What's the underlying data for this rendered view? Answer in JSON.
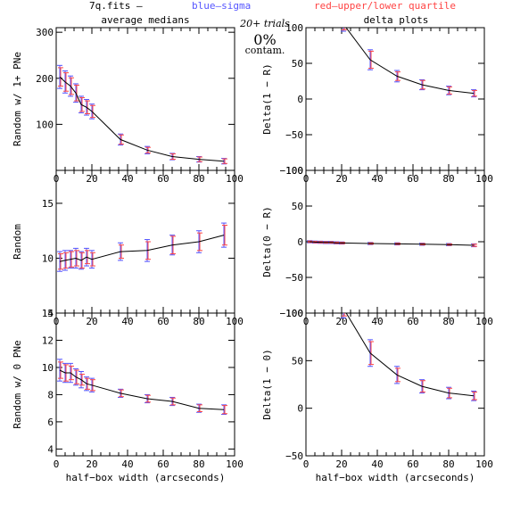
{
  "header": {
    "file": "7q.fits  —",
    "blue": "blue—sigma",
    "red": "red—upper/lower quartile",
    "left_title": "average medians",
    "right_title": "delta plots",
    "trials": "20+ trials",
    "contam_pct": "0%",
    "contam_word": "contam."
  },
  "colors": {
    "line": "#000000",
    "sigma": "#5555ff",
    "quartile": "#ff4444"
  },
  "chart_data": [
    {
      "id": "p1",
      "type": "line",
      "ylabel": "Random w/ 1+ PNe",
      "xlabel": "",
      "xlim": [
        0,
        100
      ],
      "ylim": [
        0,
        310
      ],
      "xticks": [
        "0",
        "20",
        "40",
        "60",
        "80",
        "100"
      ],
      "yticks": [
        "100",
        "200",
        "300"
      ],
      "x": [
        2,
        5,
        8,
        11,
        14,
        17,
        20,
        36,
        51,
        65,
        80,
        94
      ],
      "y": [
        203,
        192,
        183,
        168,
        143,
        137,
        128,
        67,
        44,
        30,
        24,
        20
      ],
      "sigma": [
        25,
        24,
        22,
        20,
        18,
        17,
        16,
        12,
        8,
        7,
        6,
        6
      ],
      "quartile": [
        20,
        20,
        18,
        17,
        15,
        14,
        13,
        10,
        6,
        6,
        5,
        5
      ]
    },
    {
      "id": "p2",
      "type": "line",
      "ylabel": "Delta(1 − R)",
      "xlabel": "",
      "xlim": [
        0,
        100
      ],
      "ylim": [
        -100,
        100
      ],
      "xticks": [
        "0",
        "20",
        "40",
        "60",
        "80",
        "100"
      ],
      "yticks": [
        "−100",
        "−50",
        "0",
        "50",
        "100"
      ],
      "x": [
        21,
        36,
        51,
        65,
        80,
        94
      ],
      "y": [
        105,
        55,
        32,
        20,
        12,
        8
      ],
      "sigma": [
        10,
        14,
        8,
        7,
        6,
        5
      ],
      "quartile": [
        8,
        12,
        6,
        6,
        5,
        4
      ]
    },
    {
      "id": "p3",
      "type": "line",
      "ylabel": "Random",
      "xlabel": "",
      "xlim": [
        0,
        100
      ],
      "ylim": [
        5,
        18
      ],
      "xticks": [
        "0",
        "20",
        "40",
        "60",
        "80",
        "100"
      ],
      "yticks": [
        "5",
        "10",
        "15"
      ],
      "x": [
        2,
        5,
        8,
        11,
        14,
        17,
        20,
        36,
        51,
        65,
        80,
        94
      ],
      "y": [
        9.7,
        9.8,
        9.9,
        10.0,
        9.8,
        10.1,
        9.9,
        10.6,
        10.7,
        11.2,
        11.5,
        12.1
      ],
      "sigma": [
        0.9,
        0.9,
        0.8,
        0.9,
        0.8,
        0.8,
        0.8,
        0.8,
        1.0,
        0.9,
        1.0,
        1.1
      ],
      "quartile": [
        0.7,
        0.7,
        0.7,
        0.7,
        0.7,
        0.6,
        0.6,
        0.6,
        0.8,
        0.8,
        0.8,
        0.9
      ]
    },
    {
      "id": "p4",
      "type": "line",
      "ylabel": "Delta(0 − R)",
      "xlabel": "",
      "xlim": [
        0,
        100
      ],
      "ylim": [
        -100,
        100
      ],
      "xticks": [
        "0",
        "20",
        "40",
        "60",
        "80",
        "100"
      ],
      "yticks": [
        "−100",
        "−50",
        "0",
        "50",
        "100"
      ],
      "x": [
        2,
        5,
        8,
        11,
        14,
        17,
        20,
        36,
        51,
        65,
        80,
        94
      ],
      "y": [
        0,
        -0.5,
        -0.7,
        -1,
        -1,
        -1.5,
        -1.8,
        -2.5,
        -3,
        -3.5,
        -4,
        -5
      ],
      "sigma": [
        1.5,
        1.5,
        1.5,
        1.5,
        1.5,
        1.5,
        1.5,
        1.5,
        1.5,
        1.5,
        1.5,
        2
      ],
      "quartile": [
        1,
        1,
        1,
        1,
        1,
        1,
        1,
        1,
        1,
        1,
        1,
        1.5
      ]
    },
    {
      "id": "p5",
      "type": "line",
      "ylabel": "Random w/ 0 PNe",
      "xlabel": "half−box width (arcseconds)",
      "xlim": [
        0,
        100
      ],
      "ylim": [
        3.5,
        14
      ],
      "xticks": [
        "0",
        "20",
        "40",
        "60",
        "80",
        "100"
      ],
      "yticks": [
        "4",
        "6",
        "8",
        "10",
        "12",
        "14"
      ],
      "x": [
        2,
        5,
        8,
        11,
        14,
        17,
        20,
        36,
        51,
        65,
        80,
        94
      ],
      "y": [
        9.8,
        9.6,
        9.6,
        9.3,
        9.1,
        8.8,
        8.7,
        8.1,
        7.7,
        7.5,
        7.0,
        6.9
      ],
      "sigma": [
        0.8,
        0.7,
        0.7,
        0.6,
        0.6,
        0.5,
        0.5,
        0.3,
        0.3,
        0.3,
        0.3,
        0.35
      ],
      "quartile": [
        0.6,
        0.6,
        0.5,
        0.5,
        0.4,
        0.4,
        0.4,
        0.25,
        0.25,
        0.25,
        0.25,
        0.3
      ]
    },
    {
      "id": "p6",
      "type": "line",
      "ylabel": "Delta(1 − 0)",
      "xlabel": "half−box width (arcseconds)",
      "xlim": [
        0,
        100
      ],
      "ylim": [
        -50,
        100
      ],
      "xticks": [
        "0",
        "20",
        "40",
        "60",
        "80",
        "100"
      ],
      "yticks": [
        "−50",
        "0",
        "50",
        "100"
      ],
      "x": [
        21,
        36,
        51,
        65,
        80,
        94
      ],
      "y": [
        105,
        58,
        35,
        23,
        16,
        13
      ],
      "sigma": [
        10,
        14,
        9,
        7,
        6,
        5
      ],
      "quartile": [
        8,
        12,
        7,
        6,
        5,
        4
      ]
    }
  ]
}
